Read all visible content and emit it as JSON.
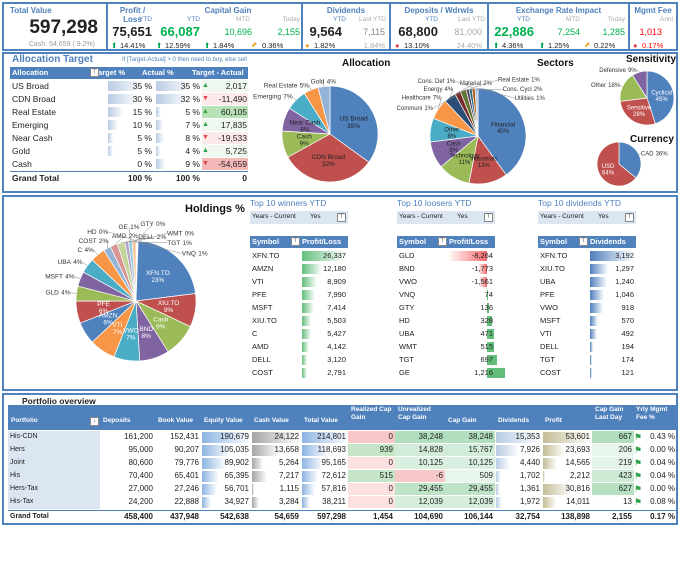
{
  "kpi": {
    "total_value": {
      "title": "Total Value",
      "value": "597,298",
      "cash": "Cash: 54,659 ( 9.2%)"
    },
    "profit_loss": {
      "title": "Profit / Loss",
      "ytd_label": "YTD",
      "value": "75,651",
      "pct": "14.41%",
      "icon": "arrow-up-icon"
    },
    "capital_gain": {
      "title": "Capital Gain",
      "ytd_label": "YTD",
      "mtd_label": "MTD",
      "today_label": "Today",
      "ytd": "66,087",
      "mtd": "10,696",
      "today": "2,155",
      "ytd_pct": "12.59%",
      "mtd_pct": "1.84%",
      "today_pct": "0.36%"
    },
    "dividends": {
      "title": "Dividends",
      "ytd_label": "YTD",
      "last_label": "Last YTD",
      "ytd": "9,564",
      "last": "7,115",
      "ytd_pct": "1.82%",
      "last_pct": "1.84%"
    },
    "deposits": {
      "title": "Deposits / Wdrwls",
      "ytd_label": "YTD",
      "last_label": "Last YTD",
      "ytd": "68,800",
      "last": "81,000",
      "ytd_pct": "13.10%",
      "last_pct": "24.40%"
    },
    "exchange": {
      "title": "Exchange Rate Impact",
      "ytd_label": "YTD",
      "mtd_label": "MTD",
      "today_label": "Today",
      "ytd": "22,886",
      "mtd": "7,254",
      "today": "1,285",
      "ytd_pct": "4.36%",
      "mtd_pct": "1.25%",
      "today_pct": "0.22%"
    },
    "mgmt_fee": {
      "title": "Mgmt Fee",
      "annl_label": "Annl",
      "value": "1,013",
      "pct": "0.17%"
    }
  },
  "allocation": {
    "title": "Allocation Target",
    "note": "If [Target-Actual] > 0 then need to buy, else sell",
    "headers": [
      "Allocation",
      "Target %",
      "Actual %",
      "Target - Actual"
    ],
    "rows": [
      {
        "name": "US Broad",
        "target": "35 %",
        "actual": "35 %",
        "diff": "2,017",
        "t": 35,
        "a": 35,
        "dir": "up"
      },
      {
        "name": "CDN Broad",
        "target": "30 %",
        "actual": "32 %",
        "diff": "-11,490",
        "t": 30,
        "a": 32,
        "dir": "down"
      },
      {
        "name": "Real Estate",
        "target": "15 %",
        "actual": "5 %",
        "diff": "60,105",
        "t": 15,
        "a": 5,
        "dir": "up"
      },
      {
        "name": "Emerging",
        "target": "10 %",
        "actual": "7 %",
        "diff": "17,835",
        "t": 10,
        "a": 7,
        "dir": "up"
      },
      {
        "name": "Near Cash",
        "target": "5 %",
        "actual": "8 %",
        "diff": "-19,533",
        "t": 5,
        "a": 8,
        "dir": "down"
      },
      {
        "name": "Gold",
        "target": "5 %",
        "actual": "4 %",
        "diff": "5,725",
        "t": 5,
        "a": 4,
        "dir": "up"
      },
      {
        "name": "Cash",
        "target": "0 %",
        "actual": "9 %",
        "diff": "-54,659",
        "t": 0,
        "a": 9,
        "dir": "down"
      }
    ],
    "total": {
      "name": "Grand Total",
      "target": "100 %",
      "actual": "100 %",
      "diff": "0"
    }
  },
  "chart_data": [
    {
      "type": "pie",
      "title": "Allocation",
      "labels": [
        "US Broad",
        "CDN Broad",
        "Cash",
        "Near Cash",
        "Emerging",
        "Real Estate",
        "Gold"
      ],
      "values": [
        35,
        32,
        9,
        8,
        7,
        5,
        4
      ],
      "colors": [
        "#4f81bd",
        "#c0504d",
        "#9bbb59",
        "#8064a2",
        "#4bacc6",
        "#f79646",
        "#95b3d7"
      ]
    },
    {
      "type": "pie",
      "title": "Sectors",
      "labels": [
        "Financial",
        "Industrials",
        "Technology",
        "Cash",
        "Other",
        "Healthcare",
        "Energy",
        "Material",
        "Cons. Cycl",
        "Communi",
        "Real Estate",
        "Cons. Def",
        "Utilities"
      ],
      "values": [
        40,
        13,
        11,
        9,
        8,
        7,
        4,
        2,
        2,
        1,
        1,
        1,
        1
      ],
      "colors": [
        "#4f81bd",
        "#c0504d",
        "#9bbb59",
        "#8064a2",
        "#4bacc6",
        "#f79646",
        "#2c4d75",
        "#772c2a",
        "#5f7530",
        "#4d3b62",
        "#276a7c",
        "#b65708",
        "#a9c4e5"
      ]
    },
    {
      "type": "pie",
      "title": "Sensitivity",
      "labels": [
        "Cyclical",
        "Sensitive",
        "Other",
        "Defensive"
      ],
      "values": [
        45,
        28,
        18,
        9
      ],
      "colors": [
        "#4f81bd",
        "#c0504d",
        "#9bbb59",
        "#8064a2"
      ]
    },
    {
      "type": "pie",
      "title": "Currency",
      "labels": [
        "CAD",
        "USD"
      ],
      "values": [
        36,
        64
      ],
      "colors": [
        "#4f81bd",
        "#c0504d"
      ]
    },
    {
      "type": "pie",
      "title": "Holdings %",
      "labels": [
        "XFN.TO",
        "XIU.TO",
        "Cash",
        "BND",
        "VWO",
        "VTI",
        "AMZN",
        "PFE",
        "GLD",
        "MSFT",
        "UBA",
        "C",
        "COST",
        "AMD",
        "DELL",
        "TGT",
        "GE",
        "VNQ",
        "GTY",
        "HD",
        "WMT"
      ],
      "values": [
        23,
        9,
        9,
        8,
        7,
        7,
        6,
        6,
        4,
        4,
        4,
        4,
        2,
        2,
        2,
        1,
        1,
        1,
        0,
        0,
        0
      ],
      "colors": [
        "#4f81bd",
        "#c0504d",
        "#9bbb59",
        "#8064a2",
        "#4bacc6",
        "#f79646",
        "#4f81bd",
        "#c0504d",
        "#9bbb59",
        "#8064a2",
        "#4bacc6",
        "#f79646",
        "#95b3d7",
        "#d99694",
        "#c3d69b",
        "#b3a2c7",
        "#93cddd",
        "#fac090",
        "#dce6f2",
        "#f2dcdb",
        "#ebf1de"
      ]
    }
  ],
  "top10": [
    {
      "title": "Top 10 winners YTD",
      "filter_label": "Years - Current",
      "filter_value": "Yes",
      "col1": "Symbol",
      "col2": "Profit/Loss",
      "bar_color": "#63be7b",
      "rows": [
        [
          "XFN.TO",
          "26,337",
          26337
        ],
        [
          "AMZN",
          "12,180",
          12180
        ],
        [
          "VTI",
          "8,909",
          8909
        ],
        [
          "PFE",
          "7,990",
          7990
        ],
        [
          "MSFT",
          "7,414",
          7414
        ],
        [
          "XIU.TO",
          "5,503",
          5503
        ],
        [
          "C",
          "5,427",
          5427
        ],
        [
          "AMD",
          "4,142",
          4142
        ],
        [
          "DELL",
          "3,120",
          3120
        ],
        [
          "COST",
          "2,791",
          2791
        ]
      ]
    },
    {
      "title": "Top 10 loosers YTD",
      "filter_label": "Years - Current",
      "filter_value": "Yes",
      "col1": "Symbol",
      "col2": "Profit/Loss",
      "bar_color": "#f8696b",
      "rows": [
        [
          "GLD",
          "-8,264",
          -8264
        ],
        [
          "BND",
          "-1,773",
          -1773
        ],
        [
          "VWO",
          "-1,561",
          -1561
        ],
        [
          "VNQ",
          "74",
          74
        ],
        [
          "GTY",
          "136",
          136
        ],
        [
          "HD",
          "328",
          328
        ],
        [
          "UBA",
          "471",
          471
        ],
        [
          "WMT",
          "515",
          515
        ],
        [
          "TGT",
          "697",
          697
        ],
        [
          "GE",
          "1,216",
          1216
        ]
      ]
    },
    {
      "title": "Top 10 dividends YTD",
      "filter_label": "Years - Current",
      "filter_value": "Yes",
      "col1": "Symbol",
      "col2": "Dividends",
      "bar_color": "#4f81bd",
      "rows": [
        [
          "XFN.TO",
          "3,192",
          3192
        ],
        [
          "XIU.TO",
          "1,297",
          1297
        ],
        [
          "UBA",
          "1,240",
          1240
        ],
        [
          "PFE",
          "1,046",
          1046
        ],
        [
          "VWO",
          "918",
          918
        ],
        [
          "MSFT",
          "570",
          570
        ],
        [
          "VTI",
          "492",
          492
        ],
        [
          "DELL",
          "194",
          194
        ],
        [
          "TGT",
          "174",
          174
        ],
        [
          "COST",
          "121",
          121
        ]
      ]
    }
  ],
  "overview": {
    "title": "Portfolio overview",
    "headers": [
      "Portfolio",
      "Deposits",
      "Book Value",
      "Equity Value",
      "Cash Value",
      "Total Value",
      "Realized Cap Gain",
      "Unrealized Cap Gain",
      "Cap Gain",
      "Dividends",
      "Profit",
      "Cap Gain Last Day",
      "Yrly Mgmt Fee %"
    ],
    "rows": [
      [
        "His-CDN",
        "161,200",
        "152,431",
        "190,679",
        "24,122",
        "214,801",
        "0",
        "38,248",
        "38,248",
        "15,353",
        "53,601",
        "667",
        "0.43 %"
      ],
      [
        "Hers",
        "95,000",
        "90,207",
        "105,035",
        "13,658",
        "118,693",
        "939",
        "14,828",
        "15,767",
        "7,926",
        "23,693",
        "206",
        "0.00 %"
      ],
      [
        "Joint",
        "80,600",
        "79,776",
        "89,902",
        "5,264",
        "95,165",
        "0",
        "10,125",
        "10,125",
        "4,440",
        "14,565",
        "219",
        "0.04 %"
      ],
      [
        "His",
        "70,400",
        "65,401",
        "65,395",
        "7,217",
        "72,612",
        "515",
        "-6",
        "509",
        "1,702",
        "2,212",
        "423",
        "0.04 %"
      ],
      [
        "Hers-Tax",
        "27,000",
        "27,246",
        "56,701",
        "1,115",
        "57,816",
        "0",
        "29,455",
        "29,455",
        "1,361",
        "30,816",
        "627",
        "0.00 %"
      ],
      [
        "His-Tax",
        "24,200",
        "22,888",
        "34,927",
        "3,284",
        "38,211",
        "0",
        "12,039",
        "12,039",
        "1,972",
        "14,011",
        "13",
        "0.08 %"
      ]
    ],
    "total": [
      "Grand Total",
      "458,400",
      "437,948",
      "542,638",
      "54,659",
      "597,298",
      "1,454",
      "104,690",
      "106,144",
      "32,754",
      "138,898",
      "2,155",
      "0.17 %"
    ]
  },
  "colors": {
    "accent": "#4f81bd",
    "positive": "#00b050",
    "negative": "#ff0000"
  }
}
